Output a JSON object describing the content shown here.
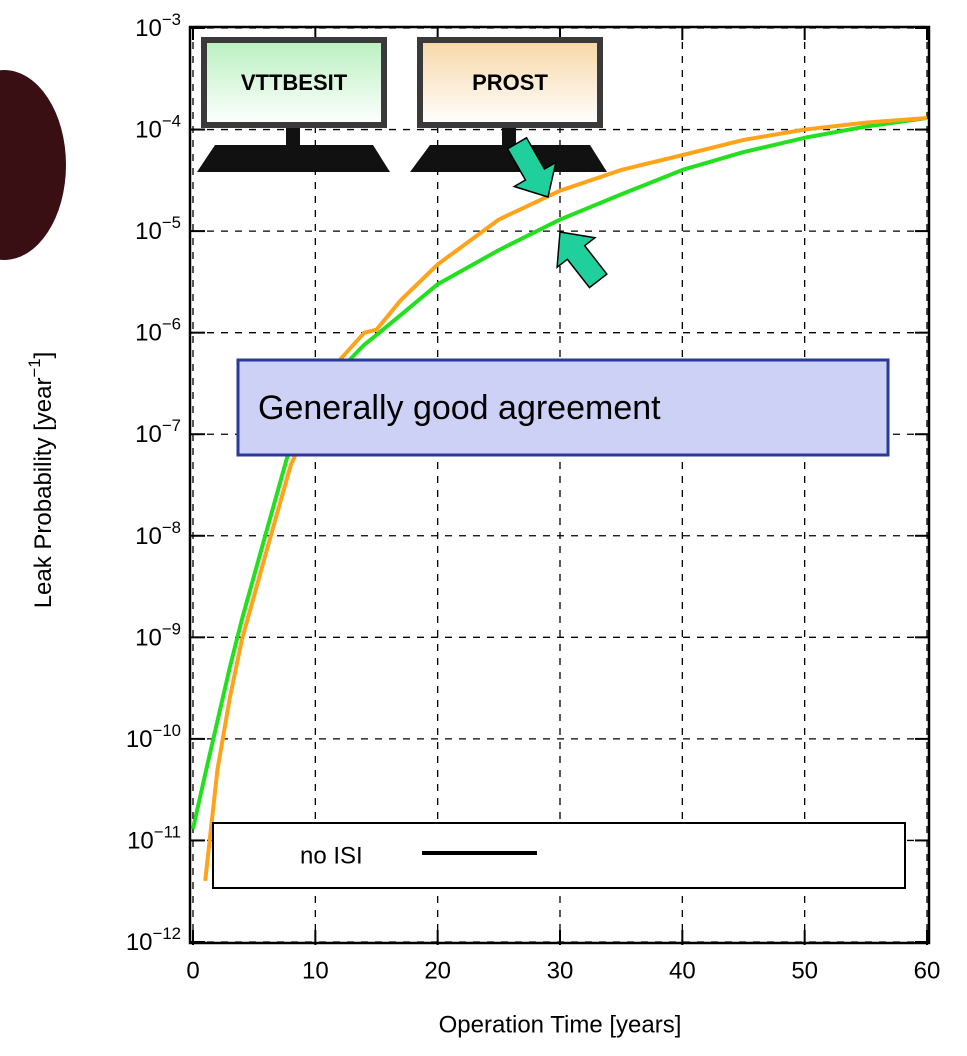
{
  "chart_data": {
    "type": "line",
    "x_label": "Operation Time [years]",
    "y_label": "Leak Probability [year−1]",
    "yscale": "log",
    "grid": true,
    "x": [
      0,
      1,
      2,
      3,
      4,
      6,
      8,
      10,
      12,
      14,
      15,
      17,
      20,
      25,
      30,
      35,
      40,
      45,
      50,
      55,
      60
    ],
    "series": [
      {
        "name": "VTTBESIT",
        "color": "#22e01e",
        "values": [
          1.3e-11,
          4.5e-11,
          1.5e-10,
          5e-10,
          1.5e-09,
          1.1e-08,
          8e-08,
          2.2e-07,
          4.3e-07,
          7.6e-07,
          9.5e-07,
          1.5e-06,
          3e-06,
          6.5e-06,
          1.3e-05,
          2.3e-05,
          4e-05,
          6e-05,
          8.3e-05,
          0.000107,
          0.00013
        ]
      },
      {
        "name": "PROST",
        "color": "#ffa31a",
        "values": [
          null,
          4e-12,
          5e-11,
          2.5e-10,
          9.5e-10,
          7e-09,
          5e-08,
          1.7e-07,
          5.4e-07,
          1e-06,
          1.07e-06,
          2.1e-06,
          4.7e-06,
          1.3e-05,
          2.5e-05,
          4e-05,
          5.6e-05,
          7.9e-05,
          0.0001,
          0.000117,
          0.00013
        ]
      }
    ],
    "xlim": [
      0,
      60
    ],
    "xticks": [
      0,
      10,
      20,
      30,
      40,
      50,
      60
    ],
    "ylim": [
      1e-12,
      0.001
    ],
    "yticks": [
      {
        "value": 1e-12,
        "label": "10−12"
      },
      {
        "value": 1e-11,
        "label": "10−11"
      },
      {
        "value": 1e-10,
        "label": "10−10"
      },
      {
        "value": 1e-09,
        "label": "10−9"
      },
      {
        "value": 1e-08,
        "label": "10−8"
      },
      {
        "value": 1e-07,
        "label": "10−7"
      },
      {
        "value": 1e-06,
        "label": "10−6"
      },
      {
        "value": 1e-05,
        "label": "10−5"
      },
      {
        "value": 0.0001,
        "label": "10−4"
      },
      {
        "value": 0.001,
        "label": "10−3"
      }
    ],
    "annotations": [
      "Generally good agreement",
      "no ISI"
    ]
  }
}
